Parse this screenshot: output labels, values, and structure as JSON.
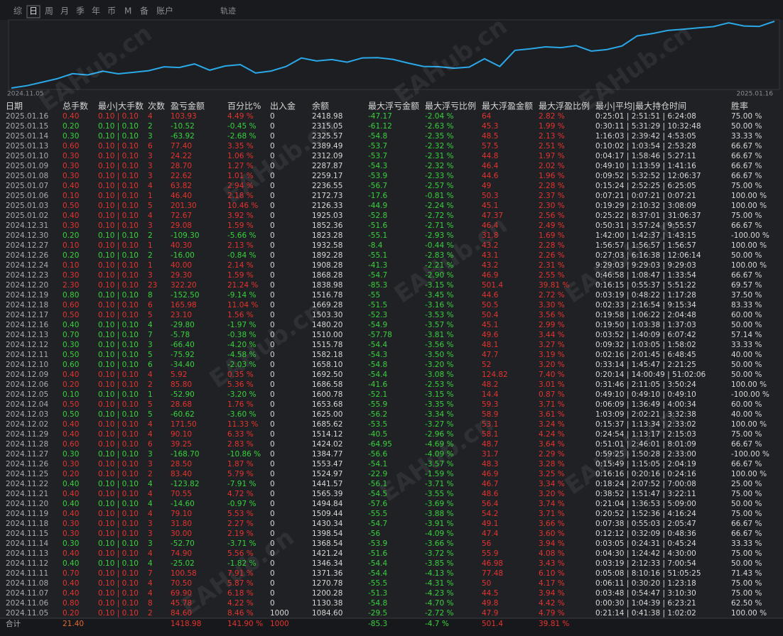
{
  "tabs": [
    "综",
    "日",
    "周",
    "月",
    "季",
    "年",
    "币",
    "M",
    "备",
    "账户"
  ],
  "track": "轨迹",
  "chart": {
    "start": "2024.11.05",
    "end": "2025.01.16"
  },
  "watermark": "EAHub.cn",
  "table": {
    "headers": [
      "日期",
      "总手数",
      "最小|大手数",
      "次数",
      "盈亏金额",
      "百分比%",
      "出入金",
      "余额",
      "最大浮亏金额",
      "最大浮亏比例",
      "最大浮盈金额",
      "最大浮盈比例",
      "最小|平均|最大持仓时间",
      "胜率"
    ],
    "rows": [
      [
        "2025.01.16",
        "0.40",
        "0.10 | 0.10",
        "4",
        "103.93",
        "4.49 %",
        "0",
        "2418.98",
        "-47.17",
        "-2.04 %",
        "64",
        "2.82 %",
        "0:25:01 | 2:51:51 | 6:24:08",
        "75.00 %"
      ],
      [
        "2025.01.15",
        "0.20",
        "0.10 | 0.10",
        "2",
        "-10.52",
        "-0.45 %",
        "0",
        "2315.05",
        "-61.12",
        "-2.63 %",
        "45.3",
        "1.99 %",
        "0:30:11 | 5:31:29 | 10:32:48",
        "50.00 %"
      ],
      [
        "2025.01.14",
        "0.30",
        "0.10 | 0.10",
        "3",
        "-63.92",
        "-2.68 %",
        "0",
        "2325.57",
        "-54.8",
        "-2.35 %",
        "48.5",
        "2.13 %",
        "1:16:03 | 2:39:42 | 4:53:05",
        "33.33 %"
      ],
      [
        "2025.01.13",
        "0.60",
        "0.10 | 0.10",
        "6",
        "77.40",
        "3.35 %",
        "0",
        "2389.49",
        "-53.7",
        "-2.32 %",
        "57.5",
        "2.51 %",
        "0:10:02 | 1:03:54 | 2:53:28",
        "66.67 %"
      ],
      [
        "2025.01.10",
        "0.30",
        "0.10 | 0.10",
        "3",
        "24.22",
        "1.06 %",
        "0",
        "2312.09",
        "-53.7",
        "-2.31 %",
        "44.8",
        "1.97 %",
        "0:04:17 | 1:58:46 | 5:27:11",
        "66.67 %"
      ],
      [
        "2025.01.09",
        "0.30",
        "0.10 | 0.10",
        "3",
        "28.70",
        "1.27 %",
        "0",
        "2287.87",
        "-54.3",
        "-2.32 %",
        "46.4",
        "2.02 %",
        "0:49:10 | 1:13:59 | 1:41:16",
        "66.67 %"
      ],
      [
        "2025.01.08",
        "0.30",
        "0.10 | 0.10",
        "3",
        "22.62",
        "1.01 %",
        "0",
        "2259.17",
        "-53.9",
        "-2.33 %",
        "44.6",
        "1.96 %",
        "0:09:52 | 5:32:52 | 12:06:37",
        "66.67 %"
      ],
      [
        "2025.01.07",
        "0.40",
        "0.10 | 0.10",
        "4",
        "63.82",
        "2.94 %",
        "0",
        "2236.55",
        "-56.7",
        "-2.57 %",
        "49",
        "2.28 %",
        "0:15:24 | 2:52:25 | 6:25:05",
        "75.00 %"
      ],
      [
        "2025.01.06",
        "0.10",
        "0.10 | 0.10",
        "1",
        "46.40",
        "2.18 %",
        "0",
        "2172.73",
        "-17.6",
        "-0.81 %",
        "50.3",
        "2.37 %",
        "0:07:21 | 0:07:21 | 0:07:21",
        "100.00 %"
      ],
      [
        "2025.01.03",
        "0.50",
        "0.10 | 0.10",
        "5",
        "201.30",
        "10.46 %",
        "0",
        "2126.33",
        "-44.9",
        "-2.24 %",
        "45.1",
        "2.30 %",
        "0:19:29 | 2:10:32 | 3:08:09",
        "100.00 %"
      ],
      [
        "2025.01.02",
        "0.40",
        "0.10 | 0.10",
        "4",
        "72.67",
        "3.92 %",
        "0",
        "1925.03",
        "-52.8",
        "-2.72 %",
        "47.37",
        "2.56 %",
        "0:25:22 | 8:37:01 | 31:06:37",
        "75.00 %"
      ],
      [
        "2024.12.31",
        "0.30",
        "0.10 | 0.10",
        "3",
        "29.08",
        "1.59 %",
        "0",
        "1852.36",
        "-51.6",
        "-2.71 %",
        "46.4",
        "2.49 %",
        "0:50:31 | 3:57:24 | 9:55:57",
        "66.67 %"
      ],
      [
        "2024.12.30",
        "0.20",
        "0.10 | 0.10",
        "2",
        "-109.30",
        "-5.66 %",
        "0",
        "1823.28",
        "-55.1",
        "-2.93 %",
        "31.8",
        "1.69 %",
        "1:42:00 | 1:42:37 | 1:43:15",
        "-100.00 %"
      ],
      [
        "2024.12.27",
        "0.10",
        "0.10 | 0.10",
        "1",
        "40.30",
        "2.13 %",
        "0",
        "1932.58",
        "-8.4",
        "-0.44 %",
        "43.2",
        "2.28 %",
        "1:56:57 | 1:56:57 | 1:56:57",
        "100.00 %"
      ],
      [
        "2024.12.26",
        "0.20",
        "0.10 | 0.10",
        "2",
        "-16.00",
        "-0.84 %",
        "0",
        "1892.28",
        "-55.1",
        "-2.83 %",
        "43.1",
        "2.26 %",
        "0:27:03 | 6:16:38 | 12:06:14",
        "50.00 %"
      ],
      [
        "2024.12.24",
        "0.10",
        "0.10 | 0.10",
        "1",
        "40.00",
        "2.14 %",
        "0",
        "1908.28",
        "-41.3",
        "-2.21 %",
        "43.2",
        "2.31 %",
        "9:29:03 | 9:29:03 | 9:29:03",
        "100.00 %"
      ],
      [
        "2024.12.23",
        "0.30",
        "0.10 | 0.10",
        "3",
        "29.30",
        "1.59 %",
        "0",
        "1868.28",
        "-54.7",
        "-2.90 %",
        "46.9",
        "2.55 %",
        "0:46:58 | 1:08:47 | 1:33:54",
        "66.67 %"
      ],
      [
        "2024.12.20",
        "2.30",
        "0.10 | 0.10",
        "23",
        "322.20",
        "21.24 %",
        "0",
        "1838.98",
        "-85.3",
        "-3.15 %",
        "501.4",
        "39.81 %",
        "0:16:15 | 0:55:37 | 5:51:22",
        "69.57 %"
      ],
      [
        "2024.12.19",
        "0.80",
        "0.10 | 0.10",
        "8",
        "-152.50",
        "-9.14 %",
        "0",
        "1516.78",
        "-55",
        "-3.45 %",
        "44.6",
        "2.72 %",
        "0:03:19 | 0:48:22 | 1:17:28",
        "37.50 %"
      ],
      [
        "2024.12.18",
        "0.60",
        "0.10 | 0.10",
        "6",
        "165.98",
        "11.04 %",
        "0",
        "1669.28",
        "-51.5",
        "-3.16 %",
        "50.5",
        "3.30 %",
        "0:02:33 | 2:16:54 | 9:15:34",
        "83.33 %"
      ],
      [
        "2024.12.17",
        "0.50",
        "0.10 | 0.10",
        "5",
        "23.10",
        "1.56 %",
        "0",
        "1503.30",
        "-52.3",
        "-3.53 %",
        "50.4",
        "3.56 %",
        "0:19:58 | 1:06:22 | 2:04:48",
        "60.00 %"
      ],
      [
        "2024.12.16",
        "0.40",
        "0.10 | 0.10",
        "4",
        "-29.80",
        "-1.97 %",
        "0",
        "1480.20",
        "-54.9",
        "-3.57 %",
        "45.1",
        "2.99 %",
        "0:19:50 | 1:03:38 | 1:37:03",
        "50.00 %"
      ],
      [
        "2024.12.13",
        "0.70",
        "0.10 | 0.10",
        "7",
        "-5.78",
        "-0.38 %",
        "0",
        "1510.00",
        "-57.78",
        "-3.81 %",
        "49.6",
        "3.44 %",
        "0:03:52 | 1:40:09 | 6:07:42",
        "57.14 %"
      ],
      [
        "2024.12.12",
        "0.30",
        "0.10 | 0.10",
        "3",
        "-66.40",
        "-4.20 %",
        "0",
        "1515.78",
        "-54.4",
        "-3.56 %",
        "48.1",
        "3.27 %",
        "0:09:32 | 1:03:05 | 1:58:02",
        "33.33 %"
      ],
      [
        "2024.12.11",
        "0.50",
        "0.10 | 0.10",
        "5",
        "-75.92",
        "-4.58 %",
        "0",
        "1582.18",
        "-54.3",
        "-3.50 %",
        "47.7",
        "3.19 %",
        "0:02:16 | 2:01:45 | 6:48:45",
        "40.00 %"
      ],
      [
        "2024.12.10",
        "0.60",
        "0.10 | 0.10",
        "6",
        "-34.40",
        "-2.03 %",
        "0",
        "1658.10",
        "-54.8",
        "-3.20 %",
        "52",
        "3.20 %",
        "0:33:14 | 1:45:47 | 2:21:25",
        "50.00 %"
      ],
      [
        "2024.12.09",
        "0.40",
        "0.10 | 0.10",
        "4",
        "5.92",
        "0.35 %",
        "0",
        "1692.50",
        "-54.4",
        "-3.08 %",
        "124.82",
        "7.40 %",
        "0:20:14 | 14:00:49 | 51:02:06",
        "50.00 %"
      ],
      [
        "2024.12.06",
        "0.20",
        "0.10 | 0.10",
        "2",
        "85.80",
        "5.36 %",
        "0",
        "1686.58",
        "-41.6",
        "-2.53 %",
        "48.2",
        "3.01 %",
        "0:31:46 | 2:11:05 | 3:50:24",
        "100.00 %"
      ],
      [
        "2024.12.05",
        "0.10",
        "0.10 | 0.10",
        "1",
        "-52.90",
        "-3.20 %",
        "0",
        "1600.78",
        "-52.1",
        "-3.15 %",
        "14.4",
        "0.87 %",
        "0:49:10 | 0:49:10 | 0:49:10",
        "-100.00 %"
      ],
      [
        "2024.12.04",
        "0.50",
        "0.10 | 0.10",
        "5",
        "28.68",
        "1.76 %",
        "0",
        "1653.68",
        "-55.9",
        "-3.35 %",
        "59.3",
        "3.71 %",
        "0:06:09 | 1:36:49 | 4:00:34",
        "60.00 %"
      ],
      [
        "2024.12.03",
        "0.50",
        "0.10 | 0.10",
        "5",
        "-60.62",
        "-3.60 %",
        "0",
        "1625.00",
        "-56.2",
        "-3.34 %",
        "58.9",
        "3.61 %",
        "1:03:09 | 2:02:21 | 3:32:38",
        "40.00 %"
      ],
      [
        "2024.12.02",
        "0.40",
        "0.10 | 0.10",
        "4",
        "171.50",
        "11.33 %",
        "0",
        "1685.62",
        "-53.5",
        "-3.27 %",
        "53.1",
        "3.24 %",
        "0:15:37 | 1:13:34 | 2:33:02",
        "100.00 %"
      ],
      [
        "2024.11.29",
        "0.40",
        "0.10 | 0.10",
        "4",
        "90.10",
        "6.33 %",
        "0",
        "1514.12",
        "-40.5",
        "-2.96 %",
        "58.1",
        "4.24 %",
        "0:24:54 | 1:13:17 | 2:15:03",
        "75.00 %"
      ],
      [
        "2024.11.28",
        "0.60",
        "0.10 | 0.10",
        "6",
        "39.25",
        "2.83 %",
        "0",
        "1424.02",
        "-64.95",
        "-4.69 %",
        "48.7",
        "3.64 %",
        "0:51:01 | 2:46:01 | 8:01:09",
        "66.67 %"
      ],
      [
        "2024.11.27",
        "0.30",
        "0.10 | 0.10",
        "3",
        "-168.70",
        "-10.86 %",
        "0",
        "1384.77",
        "-56.6",
        "-4.09 %",
        "31.7",
        "2.29 %",
        "0:59:25 | 1:50:28 | 2:33:00",
        "-100.00 %"
      ],
      [
        "2024.11.26",
        "0.30",
        "0.10 | 0.10",
        "3",
        "28.50",
        "1.87 %",
        "0",
        "1553.47",
        "-54.1",
        "-3.57 %",
        "48.3",
        "3.28 %",
        "0:15:49 | 1:15:05 | 2:04:19",
        "66.67 %"
      ],
      [
        "2024.11.25",
        "0.20",
        "0.10 | 0.10",
        "2",
        "83.40",
        "5.79 %",
        "0",
        "1524.97",
        "-22.9",
        "-1.59 %",
        "46.9",
        "3.25 %",
        "0:16:16 | 0:20:16 | 0:24:16",
        "100.00 %"
      ],
      [
        "2024.11.22",
        "0.40",
        "0.10 | 0.10",
        "4",
        "-123.82",
        "-7.91 %",
        "0",
        "1441.57",
        "-56.1",
        "-3.71 %",
        "46.7",
        "3.34 %",
        "0:18:24 | 2:07:52 | 7:00:08",
        "25.00 %"
      ],
      [
        "2024.11.21",
        "0.40",
        "0.10 | 0.10",
        "4",
        "70.55",
        "4.72 %",
        "0",
        "1565.39",
        "-54.5",
        "-3.55 %",
        "48.6",
        "3.20 %",
        "0:38:52 | 1:51:47 | 3:22:11",
        "75.00 %"
      ],
      [
        "2024.11.20",
        "0.40",
        "0.10 | 0.10",
        "4",
        "-14.60",
        "-0.97 %",
        "0",
        "1494.84",
        "-57.6",
        "-3.69 %",
        "56.4",
        "3.74 %",
        "0:21:04 | 1:36:53 | 5:09:00",
        "50.00 %"
      ],
      [
        "2024.11.19",
        "0.40",
        "0.10 | 0.10",
        "4",
        "79.10",
        "5.53 %",
        "0",
        "1509.44",
        "-55.5",
        "-3.88 %",
        "54.2",
        "3.71 %",
        "0:20:52 | 1:52:36 | 4:16:24",
        "75.00 %"
      ],
      [
        "2024.11.18",
        "0.30",
        "0.10 | 0.10",
        "3",
        "31.80",
        "2.27 %",
        "0",
        "1430.34",
        "-54.7",
        "-3.91 %",
        "49.1",
        "3.66 %",
        "0:07:38 | 0:55:03 | 2:05:47",
        "66.67 %"
      ],
      [
        "2024.11.15",
        "0.30",
        "0.10 | 0.10",
        "3",
        "30.00",
        "2.19 %",
        "0",
        "1398.54",
        "-56",
        "-4.09 %",
        "47.4",
        "3.60 %",
        "0:12:12 | 0:32:09 | 0:48:36",
        "66.67 %"
      ],
      [
        "2024.11.14",
        "0.30",
        "0.10 | 0.10",
        "3",
        "-52.70",
        "-3.71 %",
        "0",
        "1368.54",
        "-53.9",
        "-3.66 %",
        "56",
        "3.94 %",
        "0:03:05 | 0:24:31 | 0:45:24",
        "33.33 %"
      ],
      [
        "2024.11.13",
        "0.40",
        "0.10 | 0.10",
        "4",
        "74.90",
        "5.56 %",
        "0",
        "1421.24",
        "-51.6",
        "-3.72 %",
        "55.9",
        "4.08 %",
        "0:04:30 | 1:24:42 | 4:30:00",
        "75.00 %"
      ],
      [
        "2024.11.12",
        "0.40",
        "0.10 | 0.10",
        "4",
        "-25.02",
        "-1.82 %",
        "0",
        "1346.34",
        "-54.4",
        "-3.85 %",
        "46.98",
        "3.43 %",
        "0:03:19 | 2:12:33 | 7:00:54",
        "50.00 %"
      ],
      [
        "2024.11.11",
        "0.70",
        "0.10 | 0.10",
        "7",
        "100.58",
        "7.91 %",
        "0",
        "1371.36",
        "-54.4",
        "-4.13 %",
        "77.48",
        "6.10 %",
        "0:05:08 | 8:10:16 | 51:05:25",
        "71.43 %"
      ],
      [
        "2024.11.08",
        "0.40",
        "0.10 | 0.10",
        "4",
        "70.50",
        "5.87 %",
        "0",
        "1270.78",
        "-55.5",
        "-4.31 %",
        "50",
        "4.17 %",
        "0:06:11 | 0:30:20 | 1:23:18",
        "75.00 %"
      ],
      [
        "2024.11.07",
        "0.40",
        "0.10 | 0.10",
        "4",
        "69.90",
        "6.18 %",
        "0",
        "1200.28",
        "-51.3",
        "-4.23 %",
        "44.5",
        "3.94 %",
        "0:03:48 | 0:54:47 | 3:10:30",
        "75.00 %"
      ],
      [
        "2024.11.06",
        "0.80",
        "0.10 | 0.10",
        "8",
        "45.78",
        "4.22 %",
        "0",
        "1130.38",
        "-54.8",
        "-4.70 %",
        "49.8",
        "4.42 %",
        "0:00:30 | 1:04:39 | 6:23:21",
        "62.50 %"
      ],
      [
        "2024.11.05",
        "0.20",
        "0.10 | 0.10",
        "2",
        "84.60",
        "8.46 %",
        "1000",
        "1084.60",
        "-29.5",
        "-2.72 %",
        "47.9",
        "4.79 %",
        "0:21:14 | 0:41:38 | 1:02:02",
        "100.00 %"
      ]
    ],
    "total": {
      "label": "合计",
      "lots": "21.40",
      "profit": "1418.98",
      "percent": "141.90 %",
      "deposit": "1000",
      "max_float_loss": "-85.3",
      "max_float_loss_pct": "-4.7 %",
      "max_float_profit": "501.4",
      "max_float_profit_pct": "39.81 %"
    }
  }
}
